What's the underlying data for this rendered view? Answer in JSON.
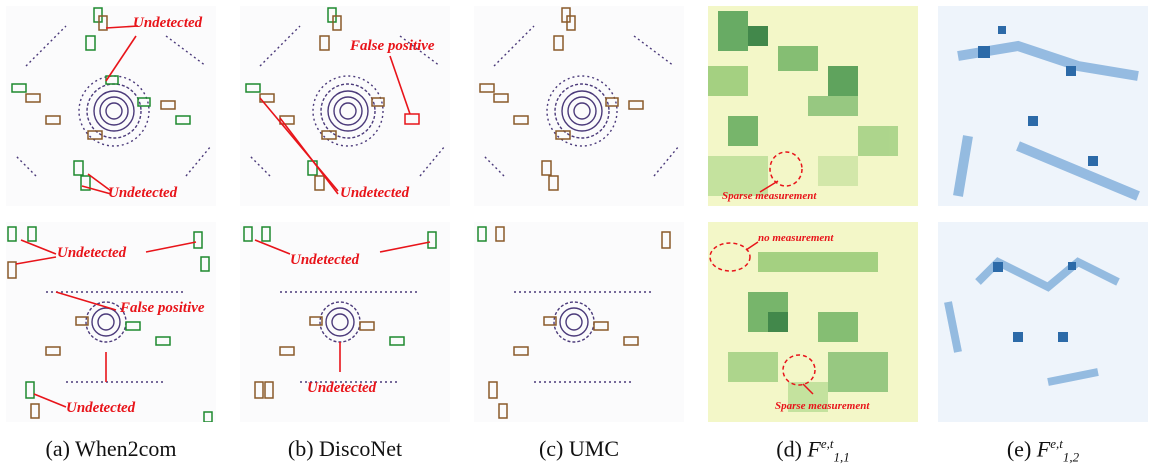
{
  "figure": {
    "captions": {
      "a": "(a) When2com",
      "b": "(b) DiscoNet",
      "c": "(c) UMC",
      "d_prefix": "(d)",
      "e_prefix": "(e)",
      "d_symbol": "F",
      "d_sup": "e,t",
      "d_sub": "1,1",
      "e_symbol": "F",
      "e_sup": "e,t",
      "e_sub": "1,2"
    },
    "annotations": {
      "undetected": "Undetected",
      "false_positive": "False positive",
      "sparse_measurement": "Sparse measurement",
      "no_measurement": "no measurement"
    },
    "colors": {
      "annotation": "#e8141a",
      "ground_truth_box": "#1e8a2e",
      "prediction_box": "#8a5a2a",
      "lidar_points": "#4b3a7a",
      "heat_green_high": "#2f7d3e",
      "heat_blue_high": "#2c6aa8"
    }
  }
}
